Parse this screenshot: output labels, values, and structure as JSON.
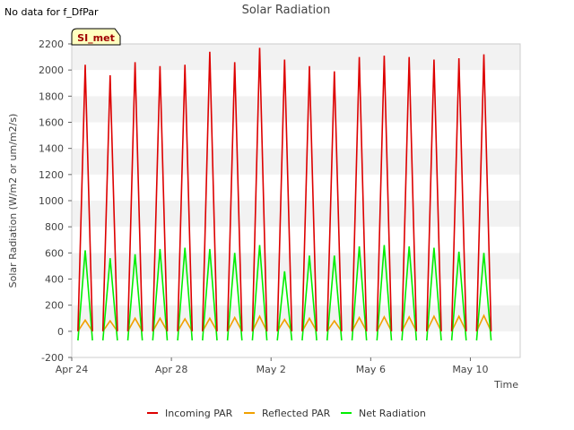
{
  "no_data_note": "No data for f_DfPar",
  "chart_data": {
    "type": "line",
    "title": "Solar Radiation",
    "xlabel": "Time",
    "ylabel": "Solar Radiation (W/m2 or um/m2/s)",
    "ylim": [
      -200,
      2200
    ],
    "yticks": [
      -200,
      0,
      200,
      400,
      600,
      800,
      1000,
      1200,
      1400,
      1600,
      1800,
      2000,
      2200
    ],
    "xlim": [
      "2024-04-24T00:00",
      "2024-05-12T00:00"
    ],
    "xtick_labels": [
      "Apr 24",
      "Apr 28",
      "May 2",
      "May 6",
      "May 10"
    ],
    "xtick_values": [
      "2024-04-24",
      "2024-04-28",
      "2024-05-02",
      "2024-05-06",
      "2024-05-10"
    ],
    "station_badge": "SI_met",
    "grid": "horizontal bands",
    "legend_placement": "bottom",
    "peak_time_of_day": "13:00",
    "series": [
      {
        "name": "Incoming PAR",
        "color": "#dd0000",
        "days": [
          "Apr 24",
          "Apr 25",
          "Apr 26",
          "Apr 27",
          "Apr 28",
          "Apr 29",
          "Apr 30",
          "May 1",
          "May 2",
          "May 3",
          "May 4",
          "May 5",
          "May 6",
          "May 7",
          "May 8",
          "May 9",
          "May 10",
          "May 11"
        ],
        "values": [
          2040,
          1960,
          2060,
          2030,
          2040,
          2140,
          2060,
          2170,
          2080,
          2030,
          1990,
          2100,
          2110,
          2100,
          2080,
          2090,
          2120,
          0
        ],
        "night_value": 0
      },
      {
        "name": "Reflected PAR",
        "color": "#f0a000",
        "days": [
          "Apr 24",
          "Apr 25",
          "Apr 26",
          "Apr 27",
          "Apr 28",
          "Apr 29",
          "Apr 30",
          "May 1",
          "May 2",
          "May 3",
          "May 4",
          "May 5",
          "May 6",
          "May 7",
          "May 8",
          "May 9",
          "May 10",
          "May 11"
        ],
        "values": [
          85,
          80,
          100,
          100,
          95,
          100,
          105,
          115,
          90,
          100,
          80,
          105,
          110,
          110,
          115,
          115,
          120,
          0
        ],
        "night_value": 0
      },
      {
        "name": "Net Radiation",
        "color": "#00ee00",
        "days": [
          "Apr 24",
          "Apr 25",
          "Apr 26",
          "Apr 27",
          "Apr 28",
          "Apr 29",
          "Apr 30",
          "May 1",
          "May 2",
          "May 3",
          "May 4",
          "May 5",
          "May 6",
          "May 7",
          "May 8",
          "May 9",
          "May 10",
          "May 11"
        ],
        "values": [
          620,
          560,
          590,
          630,
          640,
          630,
          600,
          660,
          460,
          580,
          580,
          650,
          660,
          650,
          640,
          610,
          600,
          0
        ],
        "night_value": -70
      }
    ]
  }
}
